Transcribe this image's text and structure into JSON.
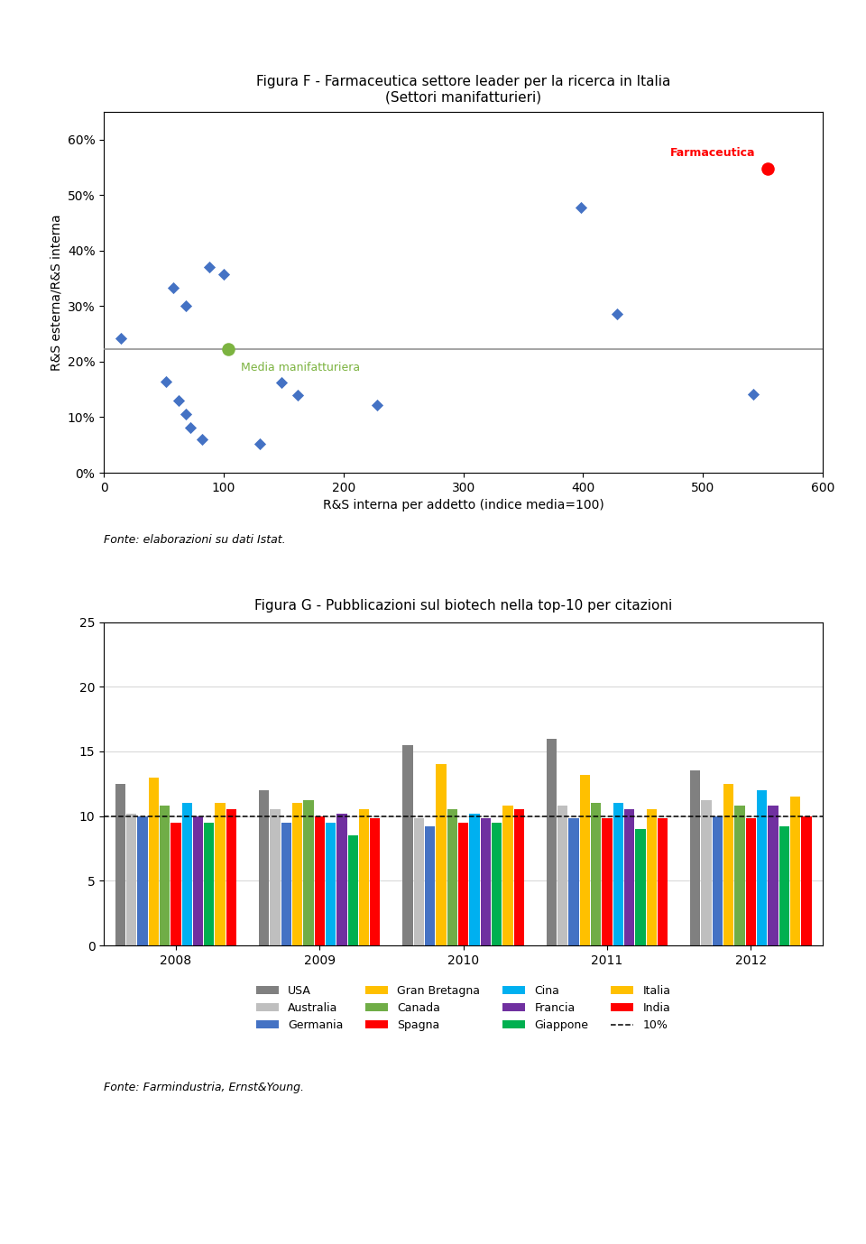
{
  "chart_data": [
    {
      "type": "scatter",
      "title": "Figura F - Farmaceutica settore leader per la ricerca in Italia",
      "subtitle": "(Settori manifatturieri)",
      "x_label": "R&S interna per addetto (indice media=100)",
      "y_label": "R&S esterna/R&S interna",
      "xlim": [
        0,
        600
      ],
      "ylim": [
        0.0,
        0.65
      ],
      "xticks": [
        0,
        100,
        200,
        300,
        400,
        500,
        600
      ],
      "yticks": [
        {
          "value": 0.0,
          "label": "0%"
        },
        {
          "value": 0.1,
          "label": "10%"
        },
        {
          "value": 0.2,
          "label": "20%"
        },
        {
          "value": 0.3,
          "label": "30%"
        },
        {
          "value": 0.4,
          "label": "40%"
        },
        {
          "value": 0.5,
          "label": "50%"
        },
        {
          "value": 0.6,
          "label": "60%"
        }
      ],
      "hline": {
        "value": 0.222
      },
      "series": [
        {
          "color": "#4472c4",
          "marker": "diamond",
          "x": [
            14,
            58,
            68,
            88,
            100,
            52,
            62,
            68,
            72,
            82,
            130,
            148,
            162,
            228,
            398,
            428,
            542
          ],
          "values": [
            0.242,
            0.333,
            0.3,
            0.37,
            0.358,
            0.165,
            0.13,
            0.105,
            0.082,
            0.06,
            0.052,
            0.162,
            0.14,
            0.122,
            0.478,
            0.286,
            0.142
          ]
        },
        {
          "color": "#7cb340",
          "marker": "circle",
          "x": [
            104
          ],
          "values": [
            0.222
          ]
        },
        {
          "color": "#ff0000",
          "marker": "circle",
          "x": [
            554
          ],
          "values": [
            0.548
          ]
        }
      ],
      "annotations": [
        {
          "text": "Media manifatturiera",
          "x": 104,
          "y": 0.222,
          "color": "#7cb340"
        },
        {
          "text": "Farmaceutica",
          "x": 554,
          "y": 0.548,
          "color": "#ff0000"
        },
        {
          "text": "Fonte: elaborazioni su dati Istat."
        }
      ]
    },
    {
      "type": "bar",
      "title": "Figura G - Pubblicazioni sul biotech nella top-10 per citazioni",
      "categories": [
        "2008",
        "2009",
        "2010",
        "2011",
        "2012"
      ],
      "ylim": [
        0,
        25
      ],
      "yticks": [
        0,
        5,
        10,
        15,
        20,
        25
      ],
      "grid": "y",
      "legend": "upper center",
      "hline": {
        "value": 10,
        "label": "10%",
        "line_style": "dashed"
      },
      "series": [
        {
          "name": "USA",
          "color": "#808080",
          "values": [
            12.5,
            12.0,
            15.5,
            16.0,
            13.5
          ]
        },
        {
          "name": "Australia",
          "color": "#bfbfbf",
          "values": [
            10.2,
            10.5,
            9.8,
            10.8,
            11.2
          ]
        },
        {
          "name": "Germania",
          "color": "#4472c4",
          "values": [
            10.0,
            9.5,
            9.2,
            9.8,
            10.0
          ]
        },
        {
          "name": "Gran Bretagna",
          "color": "#ffc000",
          "values": [
            13.0,
            11.0,
            14.0,
            13.2,
            12.5
          ]
        },
        {
          "name": "Canada",
          "color": "#70ad47",
          "values": [
            10.8,
            11.2,
            10.5,
            11.0,
            10.8
          ]
        },
        {
          "name": "Spagna",
          "color": "#ff0000",
          "values": [
            9.5,
            10.0,
            9.5,
            9.8,
            9.8
          ]
        },
        {
          "name": "Cina",
          "color": "#00b0f0",
          "values": [
            11.0,
            9.5,
            10.2,
            11.0,
            12.0
          ]
        },
        {
          "name": "Francia",
          "color": "#7030a0",
          "values": [
            10.0,
            10.2,
            9.8,
            10.5,
            10.8
          ]
        },
        {
          "name": "Giappone",
          "color": "#00b050",
          "values": [
            9.5,
            8.5,
            9.5,
            9.0,
            9.2
          ]
        },
        {
          "name": "Italia",
          "color": "#ffc000",
          "values": [
            11.0,
            10.5,
            10.8,
            10.5,
            11.5
          ]
        },
        {
          "name": "India",
          "color": "#ff0000",
          "values": [
            10.5,
            9.8,
            10.5,
            9.8,
            10.0
          ]
        }
      ],
      "annotations": [
        {
          "text": "Fonte: Farmindustria, Ernst&Young."
        }
      ]
    }
  ]
}
